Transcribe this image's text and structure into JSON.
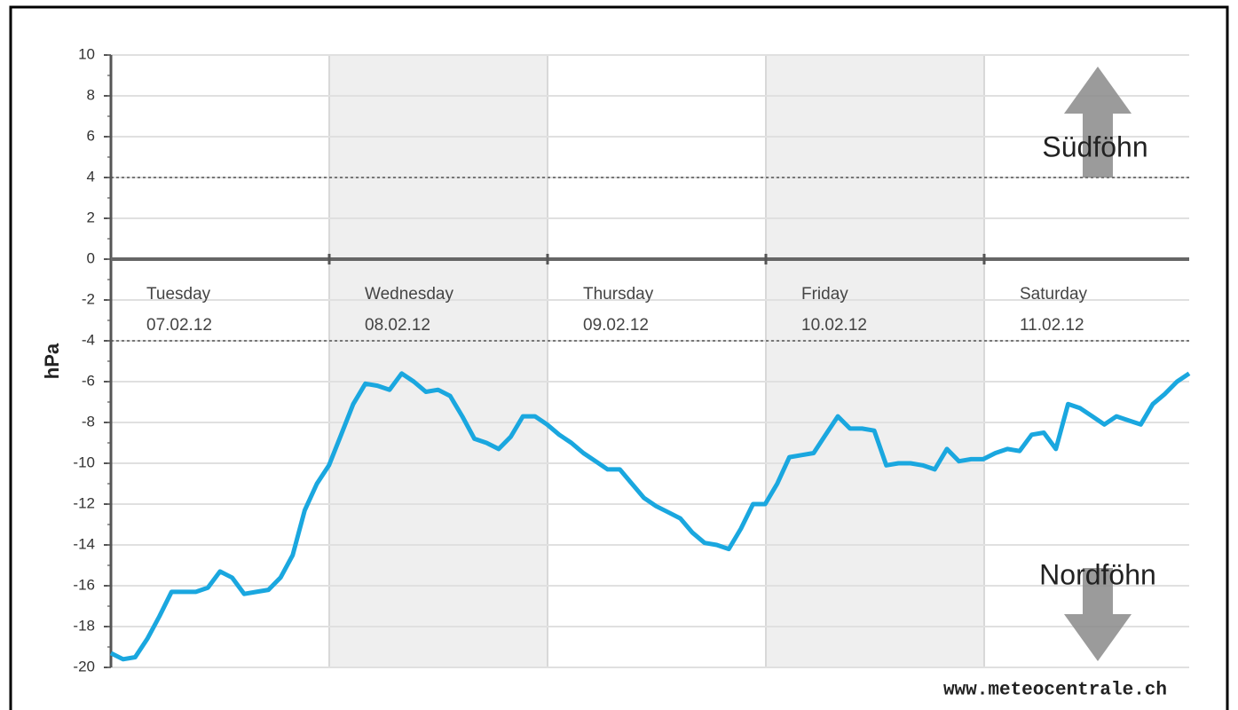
{
  "chart_data": {
    "type": "line",
    "y_label": "hPa",
    "days": [
      {
        "name": "Tuesday",
        "date": "07.02.12"
      },
      {
        "name": "Wednesday",
        "date": "08.02.12"
      },
      {
        "name": "Thursday",
        "date": "09.02.12"
      },
      {
        "name": "Friday",
        "date": "10.02.12"
      },
      {
        "name": "Saturday",
        "date": "11.02.12"
      }
    ],
    "values": [
      -19.3,
      -19.6,
      -19.5,
      -18.6,
      -17.5,
      -16.3,
      -16.3,
      -16.3,
      -16.1,
      -15.3,
      -15.6,
      -16.4,
      -16.3,
      -16.2,
      -15.6,
      -14.5,
      -12.3,
      -11,
      -10.1,
      -8.6,
      -7.1,
      -6.1,
      -6.2,
      -6.4,
      -5.6,
      -6,
      -6.5,
      -6.4,
      -6.7,
      -7.7,
      -8.8,
      -9,
      -9.3,
      -8.7,
      -7.7,
      -7.7,
      -8.1,
      -8.6,
      -9,
      -9.5,
      -9.9,
      -10.3,
      -10.3,
      -11,
      -11.7,
      -12.1,
      -12.4,
      -12.7,
      -13.4,
      -13.9,
      -14,
      -14.2,
      -13.2,
      -12,
      -12,
      -11,
      -9.7,
      -9.6,
      -9.5,
      -8.6,
      -7.7,
      -8.3,
      -8.3,
      -8.4,
      -10.1,
      -10,
      -10,
      -10.1,
      -10.3,
      -9.3,
      -9.9,
      -9.8,
      -9.8,
      -9.5,
      -9.3,
      -9.4,
      -8.6,
      -8.5,
      -9.3,
      -7.1,
      -7.3,
      -7.7,
      -8.1,
      -7.7,
      -7.9,
      -8.1,
      -7.1,
      -6.6,
      -6,
      -5.6
    ],
    "color": "#1aa7df",
    "ylim": [
      -20,
      10
    ],
    "yticks": [
      10,
      8,
      6,
      4,
      2,
      0,
      -2,
      -4,
      -6,
      -8,
      -10,
      -12,
      -14,
      -16,
      -18,
      -20
    ],
    "thresholds": [
      4,
      -4
    ],
    "grid": true,
    "annotations": [
      "Südföhn",
      "Nordföhn"
    ],
    "source": "www.meteocentrale.ch"
  }
}
